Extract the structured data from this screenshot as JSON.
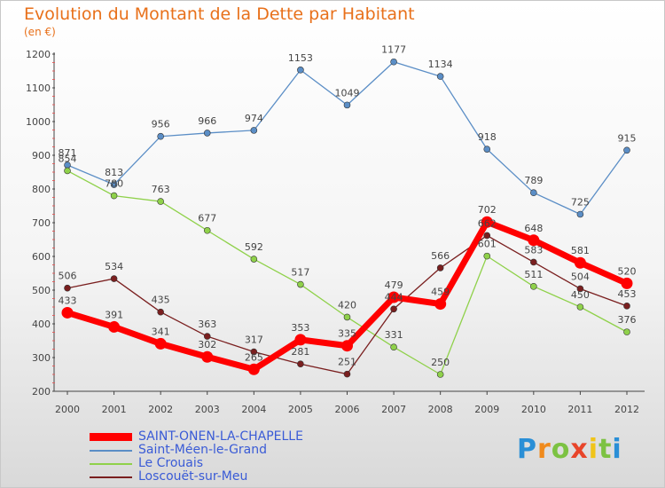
{
  "chart_data": {
    "type": "line",
    "title": "Evolution du Montant de la Dette par Habitant",
    "subtitle": "(en €)",
    "xlabel": "",
    "ylabel": "",
    "x": [
      "2000",
      "2001",
      "2002",
      "2003",
      "2004",
      "2005",
      "2006",
      "2007",
      "2008",
      "2009",
      "2010",
      "2011",
      "2012"
    ],
    "ylim": [
      200,
      1200
    ],
    "yticks": [
      200,
      300,
      400,
      500,
      600,
      700,
      800,
      900,
      1000,
      1100,
      1200
    ],
    "grid": false,
    "legend_position": "bottom-left",
    "series": [
      {
        "name": "SAINT-ONEN-LA-CHAPELLE",
        "color": "#ff0000",
        "values": [
          433,
          391,
          341,
          302,
          265,
          353,
          335,
          479,
          459,
          702,
          648,
          581,
          520
        ]
      },
      {
        "name": "Saint-Méen-le-Grand",
        "color": "#5b8ec6",
        "values": [
          871,
          813,
          956,
          966,
          974,
          1153,
          1049,
          1177,
          1134,
          918,
          789,
          725,
          915
        ]
      },
      {
        "name": "Le Crouais",
        "color": "#8fd14a",
        "values": [
          854,
          780,
          763,
          677,
          592,
          517,
          420,
          331,
          250,
          601,
          511,
          450,
          376
        ]
      },
      {
        "name": "Loscouët-sur-Meu",
        "color": "#7a1f1f",
        "values": [
          506,
          534,
          435,
          363,
          317,
          281,
          251,
          444,
          566,
          662,
          583,
          504,
          453
        ]
      }
    ]
  },
  "logo": {
    "text": "Proxiti",
    "letters": [
      "P",
      "r",
      "o",
      "x",
      "i",
      "t",
      "i"
    ]
  }
}
